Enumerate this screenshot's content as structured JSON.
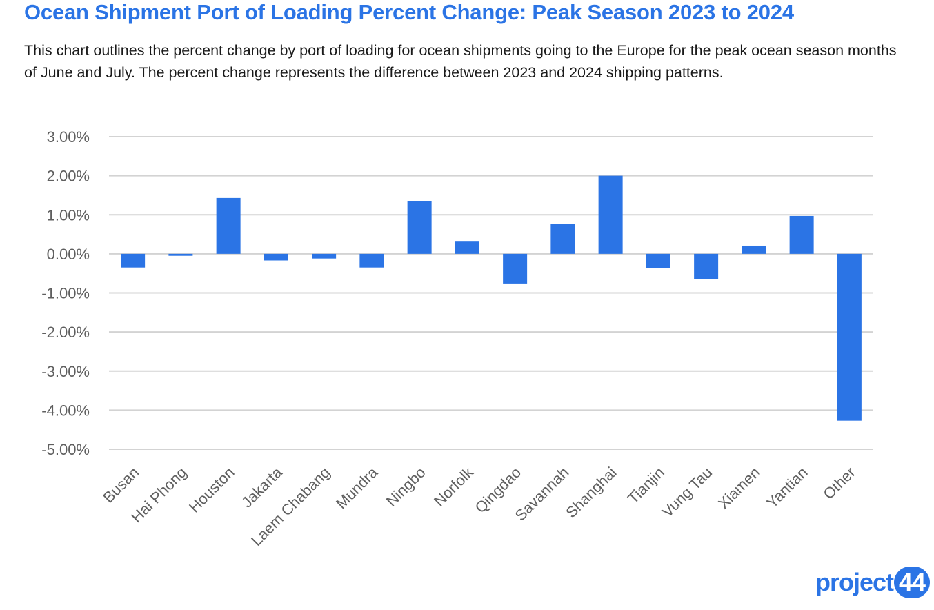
{
  "chart_data": {
    "type": "bar",
    "title": "Ocean Shipment Port of Loading Percent Change: Peak Season 2023 to 2024",
    "subtitle": "This chart outlines the percent change by port of loading for ocean shipments going to the Europe for the peak ocean season months of June and July. The percent change represents the difference between 2023 and 2024 shipping patterns.",
    "categories": [
      "Busan",
      "Hai Phong",
      "Houston",
      "Jakarta",
      "Laem Chabang",
      "Mundra",
      "Ningbo",
      "Norfolk",
      "Qingdao",
      "Savannah",
      "Shanghai",
      "Tianjin",
      "Vung Tau",
      "Xiamen",
      "Yantian",
      "Other"
    ],
    "values": [
      -0.35,
      -0.05,
      1.43,
      -0.17,
      -0.12,
      -0.35,
      1.34,
      0.33,
      -0.76,
      0.77,
      2.0,
      -0.37,
      -0.64,
      0.21,
      0.97,
      -4.27
    ],
    "ylim": [
      -5,
      3
    ],
    "yticks": [
      3,
      2,
      1,
      0,
      -1,
      -2,
      -3,
      -4,
      -5
    ],
    "ytick_labels": [
      "3.00%",
      "2.00%",
      "1.00%",
      "0.00%",
      "-1.00%",
      "-2.00%",
      "-3.00%",
      "-4.00%",
      "-5.00%"
    ],
    "xlabel": "",
    "ylabel": "",
    "grid": true,
    "legend": "none",
    "bar_color": "#2b74e5"
  },
  "logo": {
    "text": "project",
    "badge": "44"
  }
}
